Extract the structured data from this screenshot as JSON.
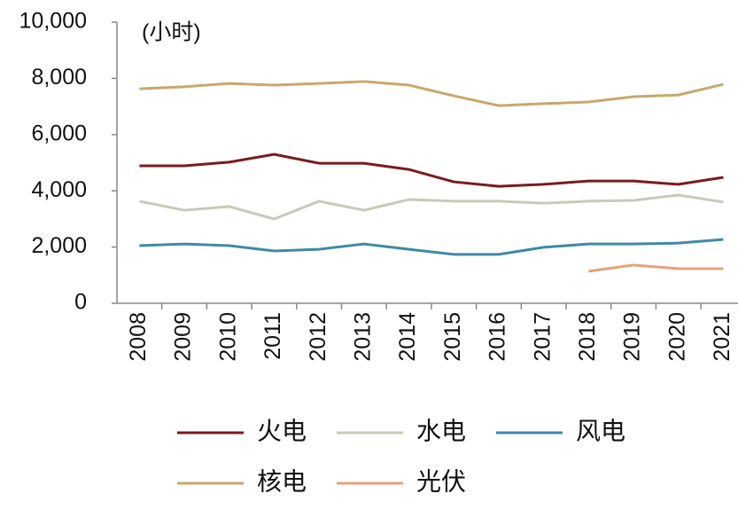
{
  "chart_data": {
    "type": "line",
    "annotation": "(小时)",
    "categories": [
      "2008",
      "2009",
      "2010",
      "2011",
      "2012",
      "2013",
      "2014",
      "2015",
      "2016",
      "2017",
      "2018",
      "2019",
      "2020",
      "2021"
    ],
    "series": [
      {
        "name": "火电",
        "color": "#7b1a1f",
        "values": [
          4890,
          4890,
          5020,
          5300,
          4980,
          4980,
          4760,
          4320,
          4160,
          4230,
          4350,
          4350,
          4230,
          4480
        ]
      },
      {
        "name": "水电",
        "color": "#c9c9b9",
        "values": [
          3630,
          3310,
          3440,
          3000,
          3630,
          3310,
          3690,
          3630,
          3630,
          3560,
          3630,
          3660,
          3850,
          3600
        ]
      },
      {
        "name": "风电",
        "color": "#3f8aa5",
        "values": [
          2050,
          2110,
          2050,
          1860,
          1920,
          2110,
          1920,
          1740,
          1740,
          1990,
          2110,
          2110,
          2140,
          2270
        ]
      },
      {
        "name": "核电",
        "color": "#c8a86a",
        "values": [
          7630,
          7700,
          7820,
          7760,
          7820,
          7890,
          7760,
          7380,
          7030,
          7100,
          7160,
          7350,
          7410,
          7790
        ]
      },
      {
        "name": "光伏",
        "color": "#e8a07a",
        "values": [
          null,
          null,
          null,
          null,
          null,
          null,
          null,
          null,
          null,
          null,
          1140,
          1360,
          1230,
          1230
        ]
      }
    ],
    "ylim": [
      0,
      10000
    ],
    "yticks": [
      0,
      {
        "value": 2000,
        "label": "2,000"
      },
      {
        "value": 4000,
        "label": "4,000"
      },
      {
        "value": 6000,
        "label": "6,000"
      },
      {
        "value": 8000,
        "label": "8,000"
      },
      {
        "value": 10000,
        "label": "10,000"
      }
    ],
    "grid": false
  }
}
